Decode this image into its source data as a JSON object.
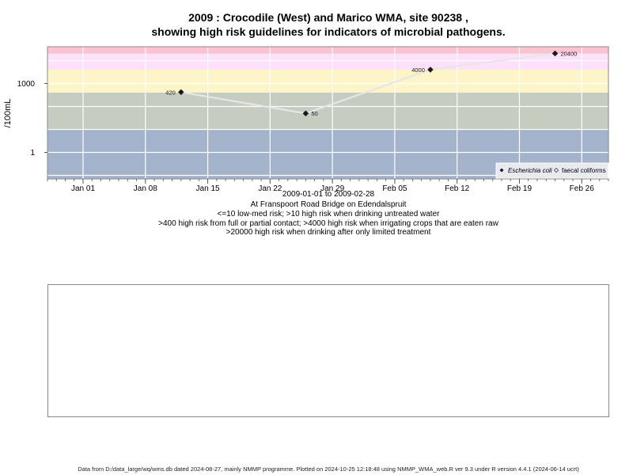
{
  "chart_data": {
    "type": "line",
    "title": "2009 : Crocodile (West) and Marico WMA, site 90238 ,",
    "subtitle": "showing high risk guidelines for indicators of microbial pathogens.",
    "ylabel": "/100mL",
    "y_scale": "log",
    "ylim": [
      0.07,
      40000
    ],
    "xlim": [
      "2008-12-28",
      "2009-03-01"
    ],
    "y_ticks": [
      {
        "value": 1,
        "label": "1"
      },
      {
        "value": 1000,
        "label": "1000"
      }
    ],
    "x_ticks": [
      {
        "date": "2009-01-01",
        "label": "Jan 01"
      },
      {
        "date": "2009-01-08",
        "label": "Jan 08"
      },
      {
        "date": "2009-01-15",
        "label": "Jan 15"
      },
      {
        "date": "2009-01-22",
        "label": "Jan 22"
      },
      {
        "date": "2009-01-29",
        "label": "Jan 29"
      },
      {
        "date": "2009-02-05",
        "label": "Feb 05"
      },
      {
        "date": "2009-02-12",
        "label": "Feb 12"
      },
      {
        "date": "2009-02-19",
        "label": "Feb 19"
      },
      {
        "date": "2009-02-26",
        "label": "Feb 26"
      }
    ],
    "bands": [
      {
        "from": 0.07,
        "to": 10,
        "color": "#a3b3cc"
      },
      {
        "from": 10,
        "to": 400,
        "color": "#c5cdc1"
      },
      {
        "from": 400,
        "to": 4000,
        "color": "#fdf5c7"
      },
      {
        "from": 4000,
        "to": 20000,
        "color": "#fde1fb"
      },
      {
        "from": 20000,
        "to": 40000,
        "color": "#fbc3cf"
      }
    ],
    "series": [
      {
        "name": "Escherichia coli",
        "marker": "filled-diamond",
        "points": [
          {
            "date": "2009-01-12",
            "value": 420,
            "label": "420"
          },
          {
            "date": "2009-01-26",
            "value": 50,
            "label": "50"
          },
          {
            "date": "2009-02-09",
            "value": 4000,
            "label": "4000"
          },
          {
            "date": "2009-02-23",
            "value": 20400,
            "label": "20400"
          }
        ]
      },
      {
        "name": "faecal coliforms",
        "marker": "open-diamond",
        "points": []
      }
    ],
    "legend_position": "bottom-right",
    "grid": true,
    "colors": {
      "line": "#e6e6e6",
      "marker": "#1a1a1a",
      "grid": "#ffffff"
    }
  },
  "captions": {
    "date_range": "2009-01-01 to 2009-02-28",
    "site": "At Franspoort Road Bridge on Edendalspruit",
    "guide1": "<=10 low-med risk; >10 high risk when drinking untreated water",
    "guide2": ">400 high risk from full or partial contact; >4000 high risk when irrigating crops that are eaten raw",
    "guide3": ">20000 high risk when drinking after only limited treatment"
  },
  "footer": "Data from D:/data_large/wq/wms.db dated 2024-08-27, mainly NMMP programme. Plotted on 2024-10-25 12:18:48 using NMMP_WMA_web.R ver 9.3 under R version 4.4.1 (2024-06-14 ucrt)"
}
